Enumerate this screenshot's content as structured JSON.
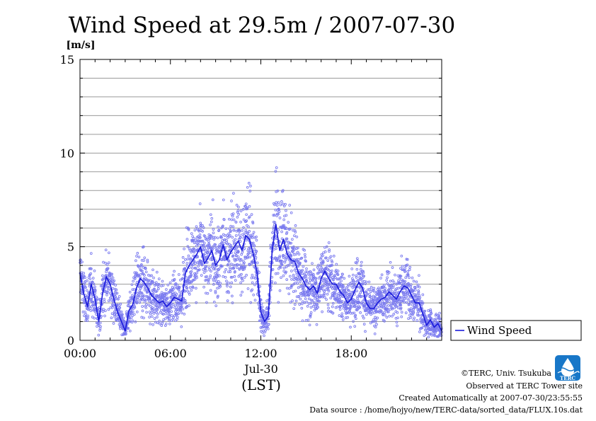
{
  "chart_data": {
    "type": "scatter",
    "title": "Wind Speed at 29.5m / 2007-07-30",
    "unit_label": "[m/s]",
    "xlabel": "(LST)",
    "date_label": "Jul-30",
    "x_range_hours": [
      0,
      24
    ],
    "ylim": [
      0,
      15
    ],
    "yticks": [
      "0",
      "5",
      "10",
      "15"
    ],
    "xticks": [
      {
        "hour": 0,
        "label": "00:00"
      },
      {
        "hour": 6,
        "label": "06:00"
      },
      {
        "hour": 12,
        "label": "12:00"
      },
      {
        "hour": 18,
        "label": "18:00"
      }
    ],
    "grid": true,
    "legend": {
      "placement": "right",
      "label": "Wind Speed"
    },
    "colors": {
      "line": "#1a1adb",
      "dots": "#7a7aef"
    },
    "series": [
      {
        "name": "Wind Speed",
        "x_hours": [
          0,
          0.25,
          0.5,
          0.75,
          1,
          1.25,
          1.5,
          1.75,
          2,
          2.25,
          2.5,
          2.75,
          3,
          3.25,
          3.5,
          3.75,
          4,
          4.25,
          4.5,
          4.75,
          5,
          5.25,
          5.5,
          5.75,
          6,
          6.25,
          6.5,
          6.75,
          7,
          7.25,
          7.5,
          7.75,
          8,
          8.25,
          8.5,
          8.75,
          9,
          9.25,
          9.5,
          9.75,
          10,
          10.25,
          10.5,
          10.75,
          11,
          11.25,
          11.5,
          11.75,
          12,
          12.25,
          12.5,
          12.75,
          13,
          13.25,
          13.5,
          13.75,
          14,
          14.25,
          14.5,
          14.75,
          15,
          15.25,
          15.5,
          15.75,
          16,
          16.25,
          16.5,
          16.75,
          17,
          17.25,
          17.5,
          17.75,
          18,
          18.25,
          18.5,
          18.75,
          19,
          19.25,
          19.5,
          19.75,
          20,
          20.25,
          20.5,
          20.75,
          21,
          21.25,
          21.5,
          21.75,
          22,
          22.25,
          22.5,
          22.75,
          23,
          23.25,
          23.5,
          23.75,
          24
        ],
        "values": [
          3.6,
          2.5,
          1.8,
          3.0,
          2.2,
          1.0,
          2.5,
          3.4,
          3.0,
          2.2,
          1.5,
          1.0,
          0.5,
          1.6,
          1.9,
          2.8,
          3.3,
          3.1,
          2.8,
          2.4,
          2.2,
          2.0,
          2.1,
          1.8,
          2.0,
          2.3,
          2.2,
          2.1,
          3.6,
          4.0,
          4.3,
          4.6,
          5.0,
          4.1,
          4.4,
          4.8,
          4.0,
          4.3,
          5.1,
          4.3,
          4.7,
          5.0,
          5.3,
          4.8,
          5.6,
          5.4,
          4.6,
          3.6,
          1.5,
          1.0,
          1.3,
          4.8,
          6.2,
          4.8,
          5.4,
          4.6,
          4.3,
          4.2,
          3.6,
          3.3,
          2.9,
          2.7,
          2.9,
          2.5,
          3.3,
          3.7,
          3.3,
          3.0,
          3.0,
          2.6,
          2.4,
          2.0,
          2.2,
          2.7,
          3.1,
          2.8,
          2.0,
          1.7,
          1.7,
          2.0,
          2.2,
          2.3,
          2.6,
          2.4,
          2.2,
          2.6,
          2.9,
          2.8,
          2.4,
          2.0,
          2.0,
          1.4,
          0.8,
          1.1,
          0.7,
          0.9,
          0.5
        ]
      }
    ]
  },
  "footer": {
    "copyright": "©TERC, Univ. Tsukuba",
    "observed": "Observed at TERC Tower site",
    "created": "Created Automatically at 2007-07-30/23:55:55",
    "source": "Data source : /home/hojyo/new/TERC-data/sorted_data/FLUX.10s.dat"
  },
  "logo": {
    "text": "TERC",
    "icon": "terc-logo-icon"
  }
}
